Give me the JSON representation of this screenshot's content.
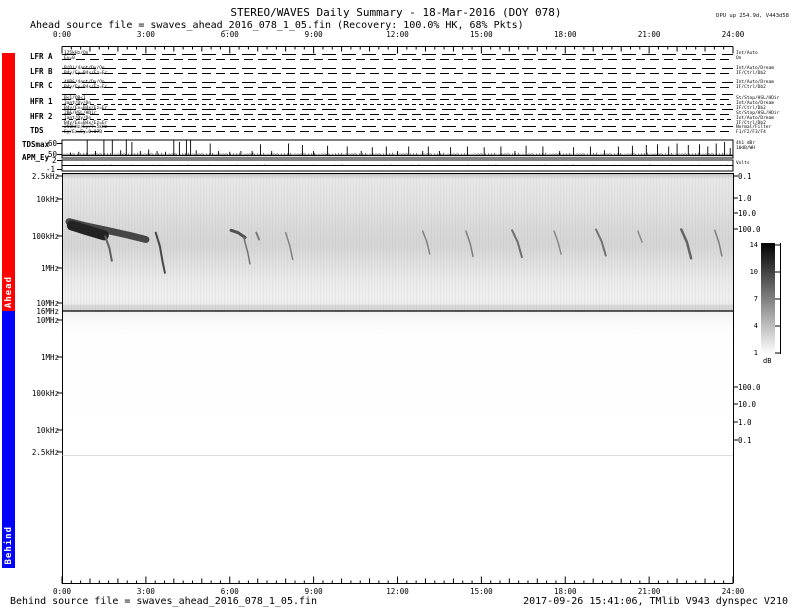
{
  "header": {
    "title": "STEREO/WAVES Daily Summary - 18-Mar-2016 (DOY 078)",
    "subtitle": "Ahead source file = swaves_ahead_2016_078_1_05.fin (Recovery: 100.0% HK,  68% Pkts)",
    "dpu_note": "DPU up 254.9d, V443d58"
  },
  "footer": {
    "source": "Behind source file = swaves_ahead_2016_078_1_05.fin",
    "generated": "2017-09-26 15:41:06, TMlib V943 dynspec V210"
  },
  "sections": {
    "ahead_label": "Ahead",
    "behind_label": "Behind"
  },
  "colors": {
    "ahead_bar": "#ff0000",
    "behind_bar": "#0000ff",
    "trace": "#000000"
  },
  "time_axis": {
    "labels": [
      "0:00",
      "3:00",
      "6:00",
      "9:00",
      "12:00",
      "15:00",
      "18:00",
      "21:00",
      "24:00"
    ],
    "hours": [
      0,
      3,
      6,
      9,
      12,
      15,
      18,
      21,
      24
    ]
  },
  "strips": {
    "rows": [
      {
        "label": "LFR A",
        "left_notes": [
          "125kHz/On",
          "Ey=0"
        ],
        "right_notes": [
          "Int/Auto",
          "On"
        ]
      },
      {
        "label": "LFR B",
        "left_notes": [
          "B(D)/4ant/Dy/On",
          "B4y/Ey=B4x/Ez=Er"
        ],
        "right_notes": [
          "Int/Auto/Dream",
          "IF/Ctrl/Db2"
        ]
      },
      {
        "label": "LFR C",
        "left_notes": [
          "40B&/4ant/Dy/On",
          "B4y/Ey=B4x/Ez=Er"
        ],
        "right_notes": [
          "Int/Auto/Dream",
          "IF/Ctrl/Db2"
        ]
      },
      {
        "label": "HFR 1",
        "left_notes": [
          "B<1/OB<1",
          "3ant/Dy/On",
          "B4y/Ex=B4x/Ez=Er"
        ],
        "right_notes": [
          "St/Stop/HSL/HDir",
          "Int/Auto/Dream",
          "IF/Ctrl/Db2"
        ]
      },
      {
        "label": "HFR 2",
        "left_notes": [
          "2B&/HSL/HDir",
          "1ant/Dy/On",
          "B4y/Ex=B4x/Ez=Er"
        ],
        "right_notes": [
          "St/Stop/HSL/HDir",
          "Int/Auto/Dream",
          "IF/Ctrl/Db2"
        ]
      },
      {
        "label": "TDS",
        "left_notes": [
          "250kHz/Ey/7.5kHz",
          "Ey/Ex=Ey=0.07B"
        ],
        "right_notes": [
          "Normal/Filter",
          "F1/F2/F3/F4"
        ]
      }
    ]
  },
  "tdsmax": {
    "label": "TDSmax",
    "y_tick_labels": [
      "60",
      "50"
    ],
    "right_notes": [
      "4h1 dBr",
      "10dB/WH"
    ]
  },
  "apm": {
    "label": "APM_Ey",
    "y_tick_labels": [
      "2",
      "-1"
    ],
    "right_notes": [
      "Volts"
    ]
  },
  "spectrogram_axes": {
    "ahead_freq_ticks": [
      "2.5kHz",
      "10kHz",
      "100kHz",
      "1MHz",
      "10MHz"
    ],
    "boundary_label": "16MHz",
    "behind_freq_ticks": [
      "10MHz",
      "1MHz",
      "100kHz",
      "10kHz",
      "2.5kHz"
    ],
    "ahead_right_ticks": [
      "0.1",
      "1.0",
      "10.0",
      "100.0"
    ],
    "behind_right_ticks": [
      "100.0",
      "10.0",
      "1.0",
      "0.1"
    ]
  },
  "colorbar": {
    "tick_labels": [
      "14",
      "10",
      "7",
      "4",
      "1"
    ],
    "unit": "dB",
    "top_color": "#000000",
    "bottom_color": "#ffffff"
  },
  "chart_data": [
    {
      "type": "heatmap",
      "name": "ahead_dynamic_spectrum",
      "x_unit": "hours",
      "x_range": [
        0,
        24
      ],
      "y_axis": "frequency",
      "y_scale": "log",
      "y_range_khz": [
        2.5,
        16000
      ],
      "y_tick_labels": [
        "2.5kHz",
        "10kHz",
        "100kHz",
        "1MHz",
        "10MHz",
        "16MHz"
      ],
      "right_tick_labels": [
        "0.1",
        "1.0",
        "10.0",
        "100.0"
      ],
      "legend": "grayscale intensity 1-14 dB",
      "features_note": "solar type III radio bursts drifting downward in frequency; strong burst complex 00:00-03:00 near 40-200 kHz",
      "bursts": [
        {
          "pts": [
            [
              0.25,
              55
            ],
            [
              0.8,
              70
            ],
            [
              1.6,
              95
            ],
            [
              2.4,
              130
            ],
            [
              3.0,
              170
            ]
          ],
          "w": 7,
          "g": 70
        },
        {
          "pts": [
            [
              0.35,
              70
            ],
            [
              0.9,
              95
            ],
            [
              1.5,
              130
            ]
          ],
          "w": 10,
          "g": 35
        },
        {
          "pts": [
            [
              1.55,
              140
            ],
            [
              1.7,
              300
            ],
            [
              1.78,
              650
            ]
          ],
          "w": 2,
          "g": 95
        },
        {
          "pts": [
            [
              3.35,
              110
            ],
            [
              3.5,
              260
            ],
            [
              3.6,
              700
            ],
            [
              3.68,
              1400
            ]
          ],
          "w": 2,
          "g": 70
        },
        {
          "pts": [
            [
              6.05,
              95
            ],
            [
              6.3,
              110
            ],
            [
              6.55,
              150
            ]
          ],
          "w": 3,
          "g": 80
        },
        {
          "pts": [
            [
              6.5,
              150
            ],
            [
              6.65,
              400
            ],
            [
              6.72,
              800
            ]
          ],
          "w": 1.5,
          "g": 115
        },
        {
          "pts": [
            [
              6.95,
              110
            ],
            [
              7.05,
              170
            ]
          ],
          "w": 2,
          "g": 120
        },
        {
          "pts": [
            [
              8.0,
              110
            ],
            [
              8.15,
              260
            ],
            [
              8.25,
              600
            ]
          ],
          "w": 1.5,
          "g": 130
        },
        {
          "pts": [
            [
              12.9,
              100
            ],
            [
              13.05,
              200
            ],
            [
              13.15,
              420
            ]
          ],
          "w": 1.5,
          "g": 130
        },
        {
          "pts": [
            [
              14.45,
              100
            ],
            [
              14.6,
              220
            ],
            [
              14.7,
              500
            ]
          ],
          "w": 1.5,
          "g": 125
        },
        {
          "pts": [
            [
              16.1,
              95
            ],
            [
              16.3,
              200
            ],
            [
              16.45,
              520
            ]
          ],
          "w": 2,
          "g": 110
        },
        {
          "pts": [
            [
              17.6,
              100
            ],
            [
              17.75,
              210
            ],
            [
              17.85,
              430
            ]
          ],
          "w": 1.5,
          "g": 135
        },
        {
          "pts": [
            [
              19.1,
              90
            ],
            [
              19.3,
              190
            ],
            [
              19.45,
              470
            ]
          ],
          "w": 2,
          "g": 115
        },
        {
          "pts": [
            [
              20.6,
              100
            ],
            [
              20.75,
              200
            ]
          ],
          "w": 1.5,
          "g": 140
        },
        {
          "pts": [
            [
              22.15,
              90
            ],
            [
              22.35,
              200
            ],
            [
              22.5,
              560
            ]
          ],
          "w": 2.5,
          "g": 100
        },
        {
          "pts": [
            [
              23.35,
              95
            ],
            [
              23.5,
              210
            ],
            [
              23.6,
              480
            ]
          ],
          "w": 1.5,
          "g": 125
        }
      ]
    },
    {
      "type": "heatmap",
      "name": "behind_dynamic_spectrum",
      "empty": true,
      "x_range": [
        0,
        24
      ],
      "y_tick_labels": [
        "16MHz",
        "10MHz",
        "1MHz",
        "100kHz",
        "10kHz",
        "2.5kHz"
      ],
      "right_tick_labels": [
        "100.0",
        "10.0",
        "1.0",
        "0.1"
      ],
      "note": "no Behind data plotted (panel blank)"
    },
    {
      "type": "line",
      "name": "TDSmax",
      "x_unit": "hours",
      "ylim": [
        50,
        60
      ],
      "y_tick_labels": [
        "60",
        "50"
      ],
      "spikes": [
        [
          0.3,
          0.2
        ],
        [
          0.6,
          0.25
        ],
        [
          0.9,
          1.0
        ],
        [
          1.2,
          0.3
        ],
        [
          1.5,
          1.0
        ],
        [
          1.8,
          1.0
        ],
        [
          2.1,
          0.35
        ],
        [
          2.3,
          1.0
        ],
        [
          2.5,
          0.9
        ],
        [
          2.8,
          0.3
        ],
        [
          3.1,
          0.4
        ],
        [
          3.4,
          0.3
        ],
        [
          3.7,
          0.25
        ],
        [
          4.0,
          1.0
        ],
        [
          4.2,
          0.9
        ],
        [
          4.45,
          1.0
        ],
        [
          4.6,
          1.0
        ],
        [
          4.8,
          0.35
        ],
        [
          5.3,
          0.8
        ],
        [
          5.6,
          0.3
        ],
        [
          6.0,
          0.25
        ],
        [
          6.4,
          0.3
        ],
        [
          6.8,
          0.3
        ],
        [
          7.1,
          0.75
        ],
        [
          7.5,
          0.3
        ],
        [
          8.1,
          0.8
        ],
        [
          8.6,
          0.7
        ],
        [
          9.0,
          0.3
        ],
        [
          9.5,
          0.65
        ],
        [
          10.2,
          0.6
        ],
        [
          10.7,
          0.3
        ],
        [
          11.1,
          0.55
        ],
        [
          11.6,
          0.6
        ],
        [
          12.0,
          0.3
        ],
        [
          12.4,
          0.6
        ],
        [
          12.9,
          0.3
        ],
        [
          13.1,
          0.6
        ],
        [
          13.5,
          0.3
        ],
        [
          13.9,
          0.55
        ],
        [
          14.5,
          0.6
        ],
        [
          15.1,
          0.55
        ],
        [
          15.7,
          0.6
        ],
        [
          16.2,
          0.3
        ],
        [
          16.6,
          0.65
        ],
        [
          17.2,
          0.6
        ],
        [
          17.8,
          0.3
        ],
        [
          18.3,
          0.55
        ],
        [
          18.9,
          0.6
        ],
        [
          19.4,
          0.35
        ],
        [
          19.9,
          0.6
        ],
        [
          20.4,
          0.65
        ],
        [
          20.9,
          0.7
        ],
        [
          21.3,
          0.75
        ],
        [
          21.7,
          0.6
        ],
        [
          22.0,
          0.8
        ],
        [
          22.4,
          0.7
        ],
        [
          22.8,
          0.75
        ],
        [
          23.1,
          0.6
        ],
        [
          23.4,
          0.8
        ],
        [
          23.7,
          0.9
        ],
        [
          23.9,
          0.5
        ]
      ]
    },
    {
      "type": "line",
      "name": "APM_Ey",
      "x_unit": "hours",
      "y_tick_labels": [
        "2",
        "-1"
      ],
      "value": "flat baseline near 0 volts"
    }
  ]
}
